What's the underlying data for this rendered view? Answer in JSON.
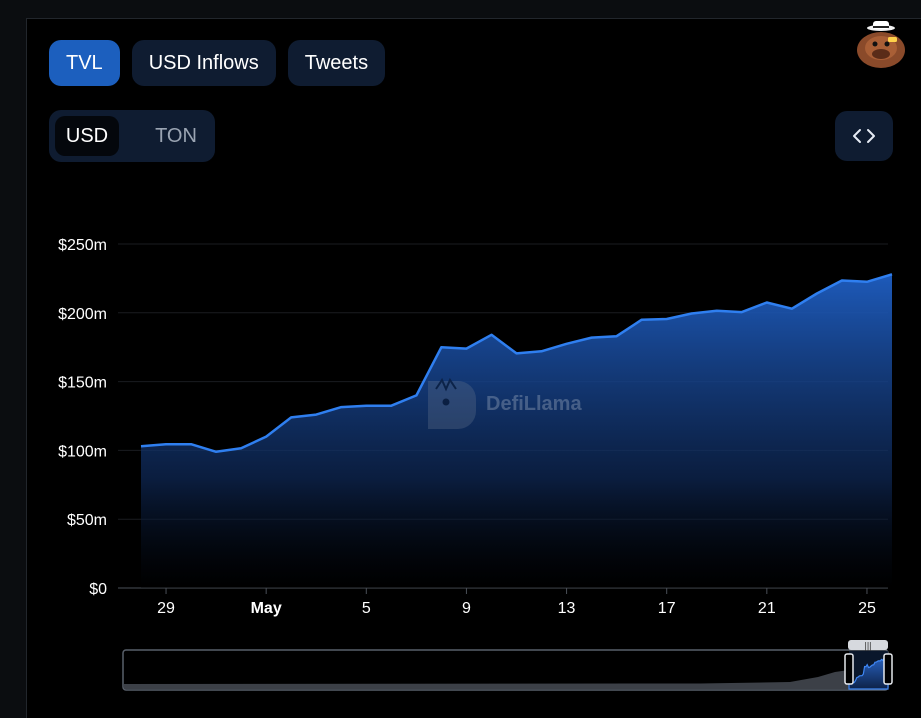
{
  "tabs": [
    {
      "label": "TVL",
      "active": true
    },
    {
      "label": "USD Inflows",
      "active": false
    },
    {
      "label": "Tweets",
      "active": false
    }
  ],
  "currency": {
    "usd": "USD",
    "ton": "TON",
    "selected": "USD"
  },
  "watermark": "DefiLlama",
  "colors": {
    "accent": "#1c5fbe",
    "line": "#2f7ff0",
    "button_bg": "#0f1c31"
  },
  "chart_data": {
    "type": "area",
    "x": [
      "Apr 28",
      "Apr 29",
      "Apr 30",
      "May 1",
      "May 2",
      "May 3",
      "May 4",
      "May 5",
      "May 6",
      "May 7",
      "May 8",
      "May 9",
      "May 10",
      "May 11",
      "May 12",
      "May 13",
      "May 14",
      "May 15",
      "May 16",
      "May 17",
      "May 18",
      "May 19",
      "May 20",
      "May 21",
      "May 22",
      "May 23",
      "May 24",
      "May 25",
      "May 26",
      "May 27",
      "May 28"
    ],
    "values": [
      103,
      104.5,
      104.5,
      99,
      101.5,
      110,
      124,
      126,
      131.5,
      132.5,
      132.5,
      140,
      175,
      174,
      184,
      170.5,
      172,
      177.5,
      182,
      183,
      195,
      195.5,
      199.5,
      201.5,
      200.5,
      207.5,
      203,
      214,
      223.5,
      222.5,
      228
    ],
    "xticks": [
      {
        "label": "29",
        "bold": false
      },
      {
        "label": "May",
        "bold": true
      },
      {
        "label": "5",
        "bold": false
      },
      {
        "label": "9",
        "bold": false
      },
      {
        "label": "13",
        "bold": false
      },
      {
        "label": "17",
        "bold": false
      },
      {
        "label": "21",
        "bold": false
      },
      {
        "label": "25",
        "bold": false
      }
    ],
    "yticks": [
      "$0",
      "$50m",
      "$100m",
      "$150m",
      "$200m",
      "$250m"
    ],
    "ylim": [
      0,
      250
    ],
    "grid": true,
    "legend": false
  }
}
